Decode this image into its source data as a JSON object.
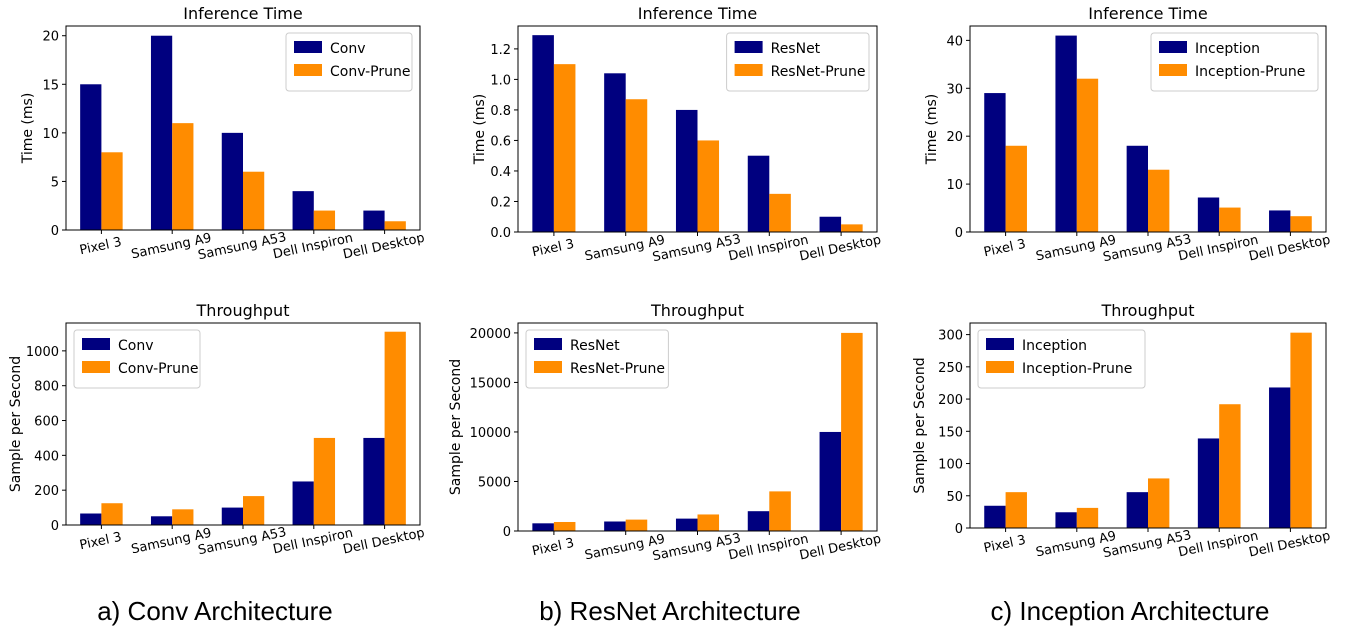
{
  "colors": {
    "base": "#00007f",
    "pruned": "#ff8c00"
  },
  "captions": [
    "a) Conv Architecture",
    "b) ResNet Architecture",
    "c) Inception Architecture"
  ],
  "chart_data": [
    {
      "type": "bar",
      "title": "Inference Time",
      "ylabel": "Time (ms)",
      "categories": [
        "Pixel 3",
        "Samsung A9",
        "Samsung A53",
        "Dell Inspiron",
        "Dell Desktop"
      ],
      "ylim": [
        0,
        21
      ],
      "yticks": [
        "0",
        "5",
        "10",
        "15",
        "20"
      ],
      "legend_position": "top-right",
      "series": [
        {
          "name": "Conv",
          "values": [
            15,
            20,
            10,
            4,
            2
          ]
        },
        {
          "name": "Conv-Prune",
          "values": [
            8,
            11,
            6,
            2,
            0.9
          ]
        }
      ]
    },
    {
      "type": "bar",
      "title": "Inference Time",
      "ylabel": "Time (ms)",
      "categories": [
        "Pixel 3",
        "Samsung A9",
        "Samsung A53",
        "Dell Inspiron",
        "Dell Desktop"
      ],
      "ylim": [
        0,
        1.35
      ],
      "yticks": [
        "0.0",
        "0.2",
        "0.4",
        "0.6",
        "0.8",
        "1.0",
        "1.2"
      ],
      "legend_position": "top-right",
      "series": [
        {
          "name": "ResNet",
          "values": [
            1.29,
            1.04,
            0.8,
            0.5,
            0.1
          ]
        },
        {
          "name": "ResNet-Prune",
          "values": [
            1.1,
            0.87,
            0.6,
            0.25,
            0.05
          ]
        }
      ]
    },
    {
      "type": "bar",
      "title": "Inference Time",
      "ylabel": "Time (ms)",
      "categories": [
        "Pixel 3",
        "Samsung A9",
        "Samsung A53",
        "Dell Inspiron",
        "Dell Desktop"
      ],
      "ylim": [
        0,
        43
      ],
      "yticks": [
        "0",
        "10",
        "20",
        "30",
        "40"
      ],
      "legend_position": "top-right",
      "series": [
        {
          "name": "Inception",
          "values": [
            29,
            41,
            18,
            7.2,
            4.5
          ]
        },
        {
          "name": "Inception-Prune",
          "values": [
            18,
            32,
            13,
            5.1,
            3.3
          ]
        }
      ]
    },
    {
      "type": "bar",
      "title": "Throughput",
      "ylabel": "Sample per Second",
      "categories": [
        "Pixel 3",
        "Samsung A9",
        "Samsung A53",
        "Dell Inspiron",
        "Dell Desktop"
      ],
      "ylim": [
        0,
        1160
      ],
      "yticks": [
        "0",
        "200",
        "400",
        "600",
        "800",
        "1000"
      ],
      "legend_position": "top-left",
      "series": [
        {
          "name": "Conv",
          "values": [
            66,
            50,
            100,
            250,
            500
          ]
        },
        {
          "name": "Conv-Prune",
          "values": [
            125,
            90,
            166,
            500,
            1110
          ]
        }
      ]
    },
    {
      "type": "bar",
      "title": "Throughput",
      "ylabel": "Sample per Second",
      "categories": [
        "Pixel 3",
        "Samsung A9",
        "Samsung A53",
        "Dell Inspiron",
        "Dell Desktop"
      ],
      "ylim": [
        0,
        21000
      ],
      "yticks": [
        "0",
        "5000",
        "10000",
        "15000",
        "20000"
      ],
      "legend_position": "top-left",
      "series": [
        {
          "name": "ResNet",
          "values": [
            775,
            960,
            1250,
            2000,
            10000
          ]
        },
        {
          "name": "ResNet-Prune",
          "values": [
            910,
            1150,
            1670,
            4000,
            20000
          ]
        }
      ]
    },
    {
      "type": "bar",
      "title": "Throughput",
      "ylabel": "Sample per Second",
      "categories": [
        "Pixel 3",
        "Samsung A9",
        "Samsung A53",
        "Dell Inspiron",
        "Dell Desktop"
      ],
      "ylim": [
        0,
        318
      ],
      "yticks": [
        "0",
        "50",
        "100",
        "150",
        "200",
        "250",
        "300"
      ],
      "legend_position": "top-left",
      "series": [
        {
          "name": "Inception",
          "values": [
            34.5,
            24.4,
            55.6,
            138.9,
            218
          ]
        },
        {
          "name": "Inception-Prune",
          "values": [
            55.6,
            31.2,
            76.9,
            192,
            303
          ]
        }
      ]
    }
  ]
}
